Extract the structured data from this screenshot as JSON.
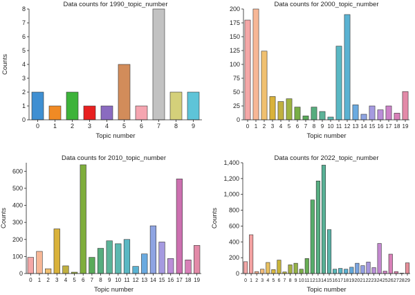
{
  "chart_data": [
    {
      "type": "bar",
      "title": "Data counts for 1990_topic_number",
      "xlabel": "Topic number",
      "ylabel": "Counts",
      "categories": [
        "0",
        "1",
        "2",
        "3",
        "4",
        "5",
        "6",
        "7",
        "8",
        "9"
      ],
      "values": [
        2,
        1,
        2,
        1,
        1,
        4,
        1,
        8,
        2,
        2
      ],
      "ylim": [
        0,
        8
      ],
      "yticks": [
        "0",
        "1",
        "2",
        "3",
        "4",
        "5",
        "6",
        "7",
        "8"
      ],
      "grid": false
    },
    {
      "type": "bar",
      "title": "Data counts for 2000_topic_number",
      "xlabel": "Topic number",
      "ylabel": "",
      "categories": [
        "0",
        "1",
        "2",
        "3",
        "4",
        "5",
        "6",
        "7",
        "8",
        "9",
        "10",
        "11",
        "12",
        "13",
        "14",
        "15",
        "16",
        "17",
        "18",
        "19"
      ],
      "values": [
        180,
        200,
        124,
        42,
        33,
        38,
        23,
        7,
        23,
        15,
        5,
        133,
        190,
        27,
        10,
        25,
        18,
        25,
        12,
        51
      ],
      "ylim": [
        0,
        200
      ],
      "yticks": [
        "0",
        "25",
        "50",
        "75",
        "100",
        "125",
        "150",
        "175",
        "200"
      ],
      "grid": false
    },
    {
      "type": "bar",
      "title": "Data counts for 2010_topic_number",
      "xlabel": "Topic number",
      "ylabel": "Counts",
      "categories": [
        "0",
        "1",
        "2",
        "3",
        "4",
        "5",
        "6",
        "7",
        "8",
        "9",
        "10",
        "11",
        "12",
        "13",
        "14",
        "15",
        "16",
        "17",
        "18",
        "19"
      ],
      "values": [
        95,
        130,
        28,
        262,
        45,
        8,
        638,
        95,
        148,
        192,
        175,
        200,
        42,
        115,
        280,
        185,
        88,
        555,
        80,
        165
      ],
      "ylim": [
        0,
        650
      ],
      "yticks": [
        "0",
        "100",
        "200",
        "300",
        "400",
        "500",
        "600"
      ],
      "grid": false
    },
    {
      "type": "bar",
      "title": "Data counts for 2022_topic_number",
      "xlabel": "Topic number",
      "ylabel": "Counts",
      "categories": [
        "0",
        "1",
        "2",
        "3",
        "4",
        "5",
        "6",
        "7",
        "8",
        "9",
        "10",
        "11",
        "12",
        "13",
        "14",
        "15",
        "16",
        "17",
        "18",
        "19",
        "20",
        "21",
        "22",
        "23",
        "24",
        "25",
        "26",
        "27",
        "28",
        "29"
      ],
      "values": [
        150,
        490,
        25,
        55,
        140,
        50,
        170,
        20,
        110,
        130,
        55,
        190,
        930,
        1170,
        1370,
        555,
        55,
        65,
        55,
        80,
        130,
        100,
        145,
        75,
        380,
        30,
        245,
        25,
        5,
        135
      ],
      "ylim": [
        0,
        1400
      ],
      "yticks": [
        "0",
        "200",
        "400",
        "600",
        "800",
        "1,000",
        "1,200",
        "1,400"
      ],
      "grid": false
    }
  ],
  "colors": {
    "panel1": [
      "#3f8fd2",
      "#f08a24",
      "#3db33a",
      "#e82020",
      "#8a6bc0",
      "#d28c5a",
      "#f5a5b0",
      "#c2c2c2",
      "#d4d07a",
      "#5ec4d8"
    ],
    "panel2": [
      "#f4a7a7",
      "#f7b796",
      "#f0c070",
      "#d9b23a",
      "#c0b040",
      "#9fb442",
      "#78ae46",
      "#5aaa5a",
      "#56ad7e",
      "#5cb398",
      "#5db8b0",
      "#5ab8c4",
      "#5ab2d2",
      "#6aaae0",
      "#8ea4e2",
      "#a59ae0",
      "#ba8ed8",
      "#cc82c8",
      "#d880b8",
      "#e38aa8"
    ],
    "panel3": [
      "#f4a7a7",
      "#f7b796",
      "#f0c070",
      "#d9b23a",
      "#c0b040",
      "#9fb442",
      "#7fae3c",
      "#5aaa5a",
      "#56ad7e",
      "#5cb398",
      "#5db8b0",
      "#5ab8c4",
      "#5ab2d2",
      "#6aaae0",
      "#8ea4e2",
      "#a59ae0",
      "#ba8ed8",
      "#cc70b0",
      "#d880b8",
      "#e38aa8"
    ],
    "panel4": [
      "#f4a7a7",
      "#f4a2a2",
      "#f5b090",
      "#f2bc7c",
      "#e8c060",
      "#d9b840",
      "#c8b43a",
      "#b8b23e",
      "#a7b142",
      "#93b046",
      "#7eae4a",
      "#68ad55",
      "#57ad6b",
      "#57ae82",
      "#58b196",
      "#5ab4a8",
      "#5bb7b8",
      "#5ab6c6",
      "#5bb0d2",
      "#64a9dc",
      "#7aa4e0",
      "#92a0e2",
      "#a898de",
      "#b890d8",
      "#c488d0",
      "#cf82c4",
      "#d880b8",
      "#de84ad",
      "#e289a3",
      "#e68f9a"
    ]
  }
}
